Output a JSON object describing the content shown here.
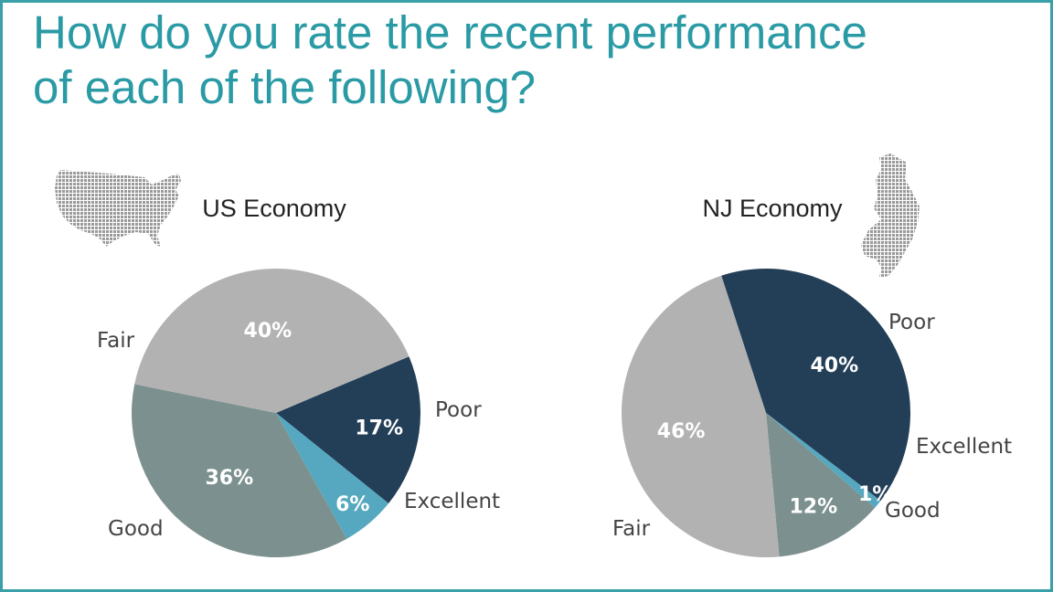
{
  "title_lines": [
    "How do you rate the recent performance",
    "of each of the following?"
  ],
  "colors": {
    "title": "#2a9aa5",
    "border": "#3aa0a8",
    "Poor": "#233f58",
    "Excellent": "#55a8bf",
    "Good": "#7c918f",
    "Fair": "#b2b2b2",
    "poor_label": "#c0504d"
  },
  "icons": [
    "usa-map-icon",
    "new-jersey-map-icon"
  ],
  "chart_data": [
    {
      "type": "pie",
      "title": "US Economy",
      "categories": [
        "Poor",
        "Excellent",
        "Good",
        "Fair"
      ],
      "values": [
        17,
        6,
        36,
        40
      ],
      "value_labels": [
        "17%",
        "6%",
        "36%",
        "40%"
      ]
    },
    {
      "type": "pie",
      "title": "NJ Economy",
      "categories": [
        "Poor",
        "Excellent",
        "Good",
        "Fair"
      ],
      "values": [
        40,
        1,
        12,
        46
      ],
      "value_labels": [
        "40%",
        "1%",
        "12%",
        "46%"
      ]
    }
  ]
}
